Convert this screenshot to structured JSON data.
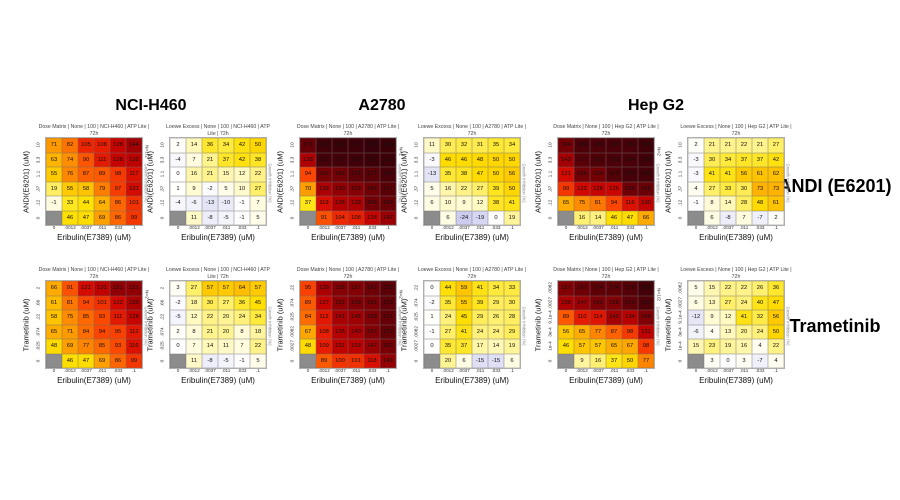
{
  "titles": {
    "cell_lines": [
      "NCI-H460",
      "A2780",
      "Hep G2"
    ],
    "row_labels": [
      "ANDI (E6201)",
      "Trametinib"
    ]
  },
  "axes": {
    "x_label": "Eribulin(E7389) (uM)",
    "x_ticks": [
      "0",
      ".0012",
      ".0037",
      ".011",
      ".033",
      ".1"
    ]
  },
  "colors": {
    "control_cell": "#8c8c8c",
    "negative_tint": "#c8c8ee",
    "dose_stops": [
      [
        -5,
        [
          255,
          255,
          245
        ]
      ],
      [
        0,
        [
          255,
          250,
          220
        ]
      ],
      [
        15,
        [
          255,
          240,
          120
        ]
      ],
      [
        30,
        [
          255,
          233,
          40
        ]
      ],
      [
        45,
        [
          255,
          225,
          0
        ]
      ],
      [
        60,
        [
          255,
          190,
          0
        ]
      ],
      [
        72,
        [
          255,
          150,
          0
        ]
      ],
      [
        85,
        [
          255,
          105,
          0
        ]
      ],
      [
        95,
        [
          250,
          65,
          0
        ]
      ],
      [
        108,
        [
          232,
          30,
          2
        ]
      ],
      [
        125,
        [
          205,
          5,
          0
        ]
      ],
      [
        140,
        [
          170,
          0,
          3
        ]
      ],
      [
        155,
        [
          135,
          0,
          5
        ]
      ],
      [
        170,
        [
          103,
          0,
          6
        ]
      ],
      [
        185,
        [
          72,
          0,
          8
        ]
      ],
      [
        200,
        [
          48,
          0,
          8
        ]
      ]
    ],
    "loewe_stops": [
      [
        0,
        [
          255,
          255,
          255
        ]
      ],
      [
        4,
        [
          255,
          253,
          240
        ]
      ],
      [
        10,
        [
          255,
          250,
          205
        ]
      ],
      [
        18,
        [
          255,
          245,
          160
        ]
      ],
      [
        27,
        [
          255,
          239,
          105
        ]
      ],
      [
        36,
        [
          255,
          231,
          45
        ]
      ],
      [
        45,
        [
          255,
          222,
          0
        ]
      ],
      [
        55,
        [
          255,
          205,
          0
        ]
      ],
      [
        65,
        [
          255,
          188,
          0
        ]
      ],
      [
        80,
        [
          255,
          170,
          0
        ]
      ]
    ]
  },
  "chart_data": [
    {
      "type": "heatmap",
      "metric": "Dose Matrix",
      "cell_line": "NCI-H460",
      "drug": "ANDI (E6201)",
      "title": "Dose Matrix | None | 100 | NCI-H460 | ATP Lite | 72h",
      "n_label": "N=1/2",
      "side_label": "Growth Inhibition (%)",
      "y_label": "ANDI(E6201) (uM)",
      "y_ticks": [
        "10",
        "3.3",
        "1.1",
        ".37",
        ".12",
        "0"
      ],
      "values": [
        [
          71,
          82,
          105,
          108,
          128,
          144
        ],
        [
          63,
          74,
          90,
          111,
          128,
          132
        ],
        [
          55,
          76,
          87,
          89,
          98,
          117
        ],
        [
          19,
          55,
          58,
          79,
          97,
          121
        ],
        [
          -1,
          33,
          44,
          64,
          86,
          101
        ],
        [
          null,
          46,
          47,
          69,
          86,
          99
        ]
      ]
    },
    {
      "type": "heatmap",
      "metric": "Loewe Excess",
      "cell_line": "NCI-H460",
      "drug": "ANDI (E6201)",
      "title": "Loewe Excess | None | 100 | NCI-H460 | ATP Lite | 72h",
      "n_label": "",
      "side_label": "Growth Inhibition (%)",
      "y_label": "ANDI(E6201) (uM)",
      "y_ticks": [
        "10",
        "3.3",
        "1.1",
        ".37",
        ".12",
        "0"
      ],
      "values": [
        [
          2,
          14,
          36,
          34,
          42,
          50
        ],
        [
          -4,
          7,
          21,
          37,
          42,
          38
        ],
        [
          0,
          16,
          21,
          15,
          12,
          22
        ],
        [
          1,
          9,
          -2,
          5,
          10,
          27
        ],
        [
          -4,
          -6,
          -13,
          -10,
          -1,
          7
        ],
        [
          null,
          11,
          -8,
          -5,
          -1,
          5
        ]
      ]
    },
    {
      "type": "heatmap",
      "metric": "Dose Matrix",
      "cell_line": "A2780",
      "drug": "ANDI (E6201)",
      "title": "Dose Matrix | None | 100 | A2780 | ATP Lite | 72h",
      "n_label": "N=2",
      "side_label": "Growth Inhibition (%)",
      "y_label": "ANDI(E6201) (uM)",
      "y_ticks": [
        "10",
        "3.3",
        "1.1",
        ".37",
        ".12",
        "0"
      ],
      "values": [
        [
          171,
          190,
          192,
          191,
          195,
          194
        ],
        [
          138,
          187,
          187,
          189,
          191,
          192
        ],
        [
          94,
          162,
          165,
          174,
          177,
          184
        ],
        [
          70,
          139,
          150,
          155,
          166,
          177
        ],
        [
          37,
          119,
          136,
          139,
          165,
          169
        ],
        [
          null,
          91,
          104,
          108,
          128,
          147
        ]
      ]
    },
    {
      "type": "heatmap",
      "metric": "Loewe Excess",
      "cell_line": "A2780",
      "drug": "ANDI (E6201)",
      "title": "Loewe Excess | None | 100 | A2780 | ATP Lite | 72h",
      "n_label": "",
      "side_label": "Growth Inhibition (%)",
      "y_label": "ANDI(E6201) (uM)",
      "y_ticks": [
        "10",
        "3.3",
        "1.1",
        ".37",
        ".12",
        "0"
      ],
      "values": [
        [
          11,
          30,
          32,
          31,
          35,
          34
        ],
        [
          -3,
          46,
          46,
          48,
          50,
          50
        ],
        [
          -13,
          35,
          38,
          47,
          50,
          56
        ],
        [
          5,
          16,
          22,
          27,
          39,
          50
        ],
        [
          6,
          10,
          9,
          12,
          38,
          41
        ],
        [
          null,
          6,
          -24,
          -19,
          0,
          19
        ]
      ]
    },
    {
      "type": "heatmap",
      "metric": "Dose Matrix",
      "cell_line": "Hep G2",
      "drug": "ANDI (E6201)",
      "title": "Dose Matrix | None | 100 | Hep G2 | ATP Lite | 72h",
      "n_label": "N=2",
      "side_label": "Growth Inhibition (%)",
      "y_label": "ANDI(E6201) (uM)",
      "y_ticks": [
        "10",
        "3.3",
        "1.1",
        ".37",
        ".12",
        "0"
      ],
      "values": [
        [
          164,
          183,
          183,
          184,
          184,
          190
        ],
        [
          143,
          177,
          181,
          183,
          184,
          188
        ],
        [
          121,
          165,
          164,
          179,
          185,
          186
        ],
        [
          99,
          122,
          128,
          125,
          166,
          168
        ],
        [
          65,
          75,
          81,
          94,
          116,
          130
        ],
        [
          null,
          16,
          14,
          46,
          47,
          66
        ]
      ]
    },
    {
      "type": "heatmap",
      "metric": "Loewe Excess",
      "cell_line": "Hep G2",
      "drug": "ANDI (E6201)",
      "title": "Loewe Excess | None | 100 | Hep G2 | ATP Lite | 72h",
      "n_label": "",
      "side_label": "Growth Inhibition (%)",
      "y_label": "ANDI(E6201) (uM)",
      "y_ticks": [
        "10",
        "3.3",
        "1.1",
        ".37",
        ".12",
        "0"
      ],
      "values": [
        [
          2,
          21,
          21,
          22,
          21,
          27
        ],
        [
          -3,
          30,
          34,
          37,
          37,
          42
        ],
        [
          -3,
          41,
          41,
          56,
          61,
          62
        ],
        [
          4,
          27,
          33,
          30,
          73,
          73
        ],
        [
          -1,
          8,
          14,
          28,
          48,
          61
        ],
        [
          null,
          6,
          -8,
          7,
          -7,
          2
        ]
      ]
    },
    {
      "type": "heatmap",
      "metric": "Dose Matrix",
      "cell_line": "NCI-H460",
      "drug": "Trametinib",
      "title": "Dose Matrix | None | 100 | NCI-H460 | ATP Lite | 72h",
      "n_label": "N=2",
      "side_label": "Growth Inhibition (%)",
      "y_label": "Trametinib (uM)",
      "y_ticks": [
        "2",
        ".66",
        ".22",
        ".074",
        ".025",
        "0"
      ],
      "values": [
        [
          66,
          91,
          121,
          131,
          151,
          151
        ],
        [
          61,
          81,
          94,
          101,
          122,
          139
        ],
        [
          58,
          75,
          85,
          93,
          111,
          128
        ],
        [
          65,
          71,
          84,
          94,
          95,
          112
        ],
        [
          48,
          69,
          77,
          85,
          93,
          116
        ],
        [
          null,
          46,
          47,
          69,
          86,
          99
        ]
      ]
    },
    {
      "type": "heatmap",
      "metric": "Loewe Excess",
      "cell_line": "NCI-H460",
      "drug": "Trametinib",
      "title": "Loewe Excess | None | 100 | NCI-H460 | ATP Lite | 72h",
      "n_label": "",
      "side_label": "Growth Inhibition (%)",
      "y_label": "Trametinib (uM)",
      "y_ticks": [
        "2",
        ".66",
        ".22",
        ".074",
        ".025",
        "0"
      ],
      "values": [
        [
          3,
          27,
          57,
          57,
          64,
          57
        ],
        [
          -2,
          18,
          30,
          27,
          36,
          45
        ],
        [
          -5,
          12,
          22,
          20,
          24,
          34
        ],
        [
          2,
          8,
          21,
          20,
          8,
          18
        ],
        [
          0,
          7,
          14,
          11,
          7,
          22
        ],
        [
          null,
          11,
          -8,
          -5,
          -1,
          5
        ]
      ]
    },
    {
      "type": "heatmap",
      "metric": "Dose Matrix",
      "cell_line": "A2780",
      "drug": "Trametinib",
      "title": "Dose Matrix | None | 100 | A2780 | ATP Lite | 72h",
      "n_label": "N=2",
      "side_label": "Growth Inhibition (%)",
      "y_label": "Trametinib (uM)",
      "y_ticks": [
        ".22",
        ".074",
        ".025",
        ".0082",
        ".0027",
        "0"
      ],
      "values": [
        [
          95,
          139,
          156,
          157,
          167,
          176
        ],
        [
          89,
          127,
          151,
          158,
          161,
          173
        ],
        [
          84,
          112,
          141,
          145,
          158,
          171
        ],
        [
          67,
          108,
          135,
          140,
          157,
          172
        ],
        [
          48,
          109,
          131,
          133,
          147,
          162
        ],
        [
          null,
          89,
          100,
          101,
          118,
          149
        ]
      ]
    },
    {
      "type": "heatmap",
      "metric": "Loewe Excess",
      "cell_line": "A2780",
      "drug": "Trametinib",
      "title": "Loewe Excess | None | 100 | A2780 | ATP Lite | 72h",
      "n_label": "",
      "side_label": "Growth Inhibition (%)",
      "y_label": "Trametinib (uM)",
      "y_ticks": [
        ".22",
        ".074",
        ".025",
        ".0082",
        ".0027",
        "0"
      ],
      "values": [
        [
          0,
          44,
          59,
          41,
          34,
          33
        ],
        [
          -2,
          35,
          55,
          39,
          29,
          30
        ],
        [
          1,
          24,
          45,
          29,
          26,
          28
        ],
        [
          -1,
          27,
          41,
          24,
          24,
          29
        ],
        [
          0,
          35,
          37,
          17,
          14,
          19
        ],
        [
          null,
          20,
          6,
          -15,
          -15,
          6
        ]
      ]
    },
    {
      "type": "heatmap",
      "metric": "Dose Matrix",
      "cell_line": "Hep G2",
      "drug": "Trametinib",
      "title": "Dose Matrix | None | 100 | Hep G2 | ATP Lite | 72h",
      "n_label": "N=1/2",
      "side_label": "Growth Inhibition (%)",
      "y_label": "Trametinib (uM)",
      "y_ticks": [
        ".0082",
        ".0027",
        "9.1e-4",
        "3e-4",
        "1e-4",
        "0"
      ],
      "values": [
        [
          157,
          167,
          174,
          174,
          178,
          188
        ],
        [
          139,
          147,
          160,
          158,
          173,
          181
        ],
        [
          89,
          110,
          114,
          142,
          134,
          158
        ],
        [
          56,
          65,
          77,
          87,
          98,
          131
        ],
        [
          46,
          57,
          57,
          65,
          67,
          98
        ],
        [
          null,
          9,
          16,
          37,
          50,
          77
        ]
      ]
    },
    {
      "type": "heatmap",
      "metric": "Loewe Excess",
      "cell_line": "Hep G2",
      "drug": "Trametinib",
      "title": "Loewe Excess | None | 100 | Hep G2 | ATP Lite | 72h",
      "n_label": "",
      "side_label": "Growth Inhibition (%)",
      "y_label": "Trametinib (uM)",
      "y_ticks": [
        ".0082",
        ".0027",
        "9.1e-4",
        "3e-4",
        "1e-4",
        "0"
      ],
      "values": [
        [
          5,
          15,
          22,
          22,
          26,
          36
        ],
        [
          6,
          13,
          27,
          24,
          40,
          47
        ],
        [
          -12,
          9,
          12,
          41,
          32,
          56
        ],
        [
          -6,
          4,
          13,
          20,
          24,
          50
        ],
        [
          15,
          23,
          19,
          16,
          4,
          22
        ],
        [
          null,
          3,
          0,
          3,
          -7,
          4
        ]
      ]
    }
  ]
}
